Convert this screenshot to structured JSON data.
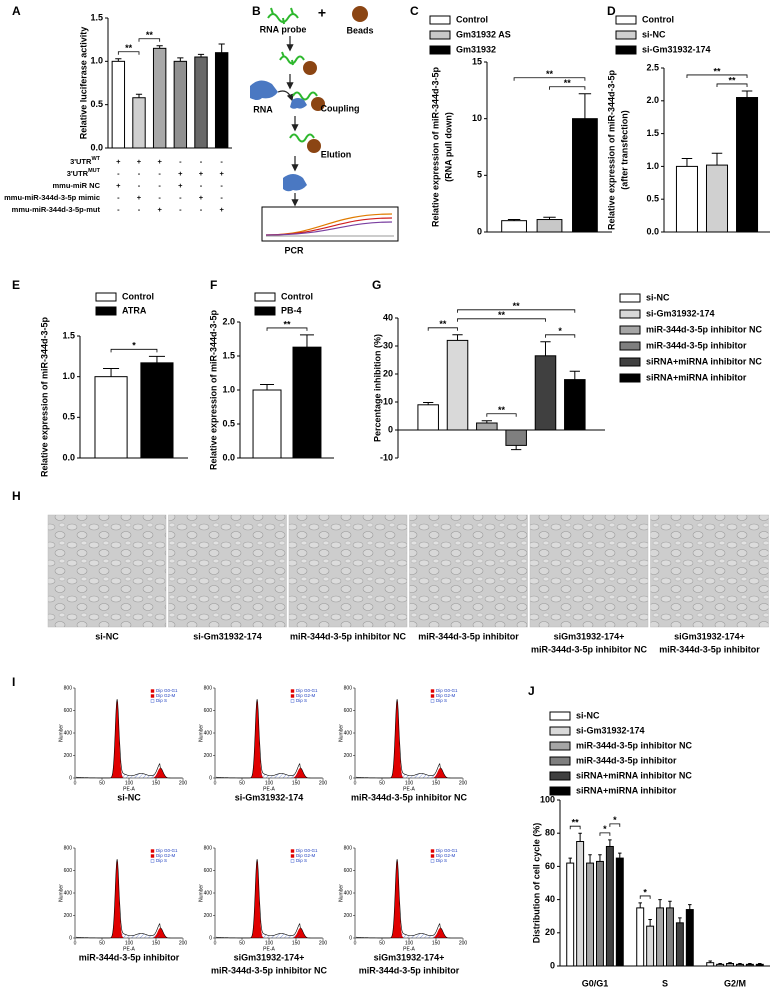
{
  "chart_data": [
    {
      "panel": "A",
      "type": "bar",
      "ylabel": [
        "Relative luciferase activity"
      ],
      "categories": [
        null,
        null,
        null,
        null,
        null,
        null
      ],
      "series": [
        {
          "colors": [
            "#ffffff",
            "#d0d0d0",
            "#a8a8a8",
            "#909090",
            "#686868",
            "#000000"
          ],
          "values": [
            1.0,
            0.58,
            1.15,
            1.0,
            1.05,
            1.1
          ],
          "errors": [
            0.03,
            0.04,
            0.03,
            0.04,
            0.03,
            0.1
          ]
        }
      ],
      "ylim": [
        0,
        1.5
      ],
      "yticks": [
        {
          "value": 0,
          "label": "0.0"
        },
        0.5,
        {
          "value": 1,
          "label": "1.0"
        },
        1.5
      ],
      "annotations": [
        {
          "text": "**",
          "from": [
            0,
            0
          ],
          "to": [
            1,
            0
          ]
        },
        {
          "text": "**",
          "from": [
            1,
            0
          ],
          "to": [
            2,
            0
          ]
        }
      ],
      "conditions": [
        {
          "label": "3'UTR",
          "sup": "WT",
          "signs": [
            "+",
            "+",
            "+",
            "-",
            "-",
            "-"
          ]
        },
        {
          "label": "3'UTR",
          "sup": "MUT",
          "signs": [
            "-",
            "-",
            "-",
            "+",
            "+",
            "+"
          ]
        },
        {
          "label": "mmu-miR NC",
          "signs": [
            "+",
            "-",
            "-",
            "+",
            "-",
            "-"
          ]
        },
        {
          "label": "mmu-miR-344d-3-5p mimic",
          "signs": [
            "-",
            "+",
            "-",
            "-",
            "+",
            "-"
          ]
        },
        {
          "label": "mmu-miR-344d-3-5p-mut",
          "signs": [
            "-",
            "-",
            "+",
            "-",
            "-",
            "+"
          ]
        }
      ]
    },
    {
      "panel": "C",
      "type": "bar",
      "ylabel": [
        "Relative expression of miR-344d-3-5p",
        "(RNA pull down)"
      ],
      "categories": [
        null
      ],
      "series": [
        {
          "name": "Control",
          "color": "#ffffff",
          "values": [
            1.0
          ],
          "errors": [
            0.1
          ]
        },
        {
          "name": "Gm31932 AS",
          "color": "#c8c8c8",
          "values": [
            1.1
          ],
          "errors": [
            0.2
          ]
        },
        {
          "name": "Gm31932",
          "color": "#000000",
          "values": [
            10.0
          ],
          "errors": [
            2.2
          ]
        }
      ],
      "ylim": [
        0,
        15
      ],
      "yticks": [
        0,
        5,
        10,
        15
      ],
      "annotations": [
        {
          "text": "**",
          "from": [
            0,
            0
          ],
          "to": [
            0,
            2
          ]
        },
        {
          "text": "**",
          "from": [
            0,
            1
          ],
          "to": [
            0,
            2
          ]
        }
      ]
    },
    {
      "panel": "D",
      "type": "bar",
      "ylabel": [
        "Relative expression of miR-344d-3-5p",
        "(after transfection)"
      ],
      "categories": [
        null
      ],
      "series": [
        {
          "name": "Control",
          "color": "#ffffff",
          "values": [
            1.0
          ],
          "errors": [
            0.12
          ]
        },
        {
          "name": "si-NC",
          "color": "#d0d0d0",
          "values": [
            1.02
          ],
          "errors": [
            0.18
          ]
        },
        {
          "name": "si-Gm31932-174",
          "color": "#000000",
          "values": [
            2.05
          ],
          "errors": [
            0.1
          ]
        }
      ],
      "ylim": [
        0,
        2.5
      ],
      "yticks": [
        {
          "value": 0,
          "label": "0.0"
        },
        0.5,
        {
          "value": 1,
          "label": "1.0"
        },
        1.5,
        {
          "value": 2,
          "label": "2.0"
        },
        2.5
      ],
      "annotations": [
        {
          "text": "**",
          "from": [
            0,
            0
          ],
          "to": [
            0,
            2
          ]
        },
        {
          "text": "**",
          "from": [
            0,
            1
          ],
          "to": [
            0,
            2
          ]
        }
      ]
    },
    {
      "panel": "E",
      "type": "bar",
      "ylabel": [
        "Relative expression of miR-344d-3-5p"
      ],
      "categories": [
        null
      ],
      "series": [
        {
          "name": "Control",
          "color": "#ffffff",
          "values": [
            1.0
          ],
          "errors": [
            0.1
          ]
        },
        {
          "name": "ATRA",
          "color": "#000000",
          "values": [
            1.17
          ],
          "errors": [
            0.08
          ]
        }
      ],
      "ylim": [
        0,
        1.5
      ],
      "yticks": [
        {
          "value": 0,
          "label": "0.0"
        },
        0.5,
        {
          "value": 1,
          "label": "1.0"
        },
        1.5
      ],
      "annotations": [
        {
          "text": "*",
          "from": [
            0,
            0
          ],
          "to": [
            0,
            1
          ]
        }
      ]
    },
    {
      "panel": "F",
      "type": "bar",
      "ylabel": [
        "Relative expression of miR-344d-3-5p"
      ],
      "categories": [
        null
      ],
      "series": [
        {
          "name": "Control",
          "color": "#ffffff",
          "values": [
            1.0
          ],
          "errors": [
            0.08
          ]
        },
        {
          "name": "PB-4",
          "color": "#000000",
          "values": [
            1.63
          ],
          "errors": [
            0.18
          ]
        }
      ],
      "ylim": [
        0,
        2
      ],
      "yticks": [
        {
          "value": 0,
          "label": "0.0"
        },
        0.5,
        {
          "value": 1,
          "label": "1.0"
        },
        1.5,
        {
          "value": 2,
          "label": "2.0"
        }
      ],
      "annotations": [
        {
          "text": "**",
          "from": [
            0,
            0
          ],
          "to": [
            0,
            1
          ]
        }
      ]
    },
    {
      "panel": "G",
      "type": "bar",
      "ylabel": [
        "Percentage inhibition (%)"
      ],
      "categories": [
        null
      ],
      "series": [
        {
          "name": "si-NC",
          "color": "#ffffff",
          "values": [
            9
          ],
          "errors": [
            0.8
          ]
        },
        {
          "name": "si-Gm31932-174",
          "color": "#d9d9d9",
          "values": [
            32
          ],
          "errors": [
            2
          ]
        },
        {
          "name": "miR-344d-3-5p inhibitor NC",
          "color": "#a6a6a6",
          "values": [
            2.5
          ],
          "errors": [
            0.8
          ]
        },
        {
          "name": "miR-344d-3-5p inhibitor",
          "color": "#7f7f7f",
          "values": [
            -5.5
          ],
          "errors": [
            1.5
          ]
        },
        {
          "name": "siRNA+miRNA inhibitor NC",
          "color": "#404040",
          "values": [
            26.5
          ],
          "errors": [
            5
          ]
        },
        {
          "name": "siRNA+miRNA inhibitor",
          "color": "#000000",
          "values": [
            18
          ],
          "errors": [
            3
          ]
        }
      ],
      "ylim": [
        -10,
        40
      ],
      "yticks": [
        -10,
        0,
        10,
        20,
        30,
        40
      ],
      "annotations": [
        {
          "text": "**",
          "from": [
            0,
            0
          ],
          "to": [
            0,
            1
          ]
        },
        {
          "text": "**",
          "from": [
            0,
            1
          ],
          "to": [
            0,
            5
          ]
        },
        {
          "text": "**",
          "from": [
            0,
            1
          ],
          "to": [
            0,
            4
          ]
        },
        {
          "text": "*",
          "from": [
            0,
            4
          ],
          "to": [
            0,
            5
          ]
        },
        {
          "text": "**",
          "from": [
            0,
            2
          ],
          "to": [
            0,
            3
          ]
        }
      ]
    },
    {
      "panel": "J",
      "type": "bar",
      "ylabel": [
        "Distribution of cell cycle (%)"
      ],
      "categories": [
        "G0/G1",
        "S",
        "G2/M"
      ],
      "series": [
        {
          "name": "si-NC",
          "color": "#ffffff",
          "values": [
            62,
            35,
            2
          ],
          "errors": [
            3,
            3,
            1
          ]
        },
        {
          "name": "si-Gm31932-174",
          "color": "#d9d9d9",
          "values": [
            75,
            24,
            1
          ],
          "errors": [
            5,
            4,
            0.5
          ]
        },
        {
          "name": "miR-344d-3-5p inhibitor NC",
          "color": "#a6a6a6",
          "values": [
            62,
            35,
            1.5
          ],
          "errors": [
            5,
            5,
            0.5
          ]
        },
        {
          "name": "miR-344d-3-5p inhibitor",
          "color": "#7f7f7f",
          "values": [
            63,
            35,
            1
          ],
          "errors": [
            4,
            4,
            0.5
          ]
        },
        {
          "name": "siRNA+miRNA inhibitor NC",
          "color": "#404040",
          "values": [
            72,
            26,
            1
          ],
          "errors": [
            4,
            3,
            0.5
          ]
        },
        {
          "name": "siRNA+miRNA inhibitor",
          "color": "#000000",
          "values": [
            65,
            34,
            1
          ],
          "errors": [
            3,
            3,
            0.5
          ]
        }
      ],
      "ylim": [
        0,
        100
      ],
      "yticks": [
        0,
        20,
        40,
        60,
        80,
        100
      ],
      "annotations": [
        {
          "text": "**",
          "from": [
            0,
            0
          ],
          "to": [
            0,
            1
          ]
        },
        {
          "text": "*",
          "from": [
            0,
            3
          ],
          "to": [
            0,
            4
          ]
        },
        {
          "text": "*",
          "from": [
            0,
            4
          ],
          "to": [
            0,
            5
          ]
        },
        {
          "text": "*",
          "from": [
            1,
            0
          ],
          "to": [
            1,
            1
          ]
        }
      ]
    }
  ],
  "diagram": {
    "panel": "B",
    "labels": {
      "rna_probe": "RNA probe",
      "plus": "+",
      "beads": "Beads",
      "rna": "RNA",
      "coupling": "Coupling",
      "elution": "Elution",
      "pcr": "PCR"
    }
  },
  "micrographs": {
    "panel": "H",
    "captions": [
      [
        "si-NC"
      ],
      [
        "si-Gm31932-174"
      ],
      [
        "miR-344d-3-5p inhibitor NC"
      ],
      [
        "miR-344d-3-5p inhibitor"
      ],
      [
        "siGm31932-174+",
        "miR-344d-3-5p inhibitor NC"
      ],
      [
        "siGm31932-174+",
        "miR-344d-3-5p inhibitor"
      ]
    ]
  },
  "flow_cytometry": {
    "panel": "I",
    "xlabel": "PE-A",
    "ylabel": "Number",
    "xlim": [
      0,
      200
    ],
    "xticks": [
      0,
      50,
      100,
      150,
      200
    ],
    "ylim": [
      0,
      800
    ],
    "yticks": [
      0,
      200,
      400,
      600,
      800
    ],
    "legend": [
      "Dip G0-G1",
      "Dip G2-M",
      "Dip S"
    ],
    "legend_colors": [
      "#e00000",
      "#e00000",
      "#3355cc"
    ],
    "captions": [
      [
        "si-NC"
      ],
      [
        "si-Gm31932-174"
      ],
      [
        "miR-344d-3-5p inhibitor NC"
      ],
      [
        "miR-344d-3-5p inhibitor"
      ],
      [
        "siGm31932-174+",
        "miR-344d-3-5p inhibitor NC"
      ],
      [
        "siGm31932-174+",
        "miR-344d-3-5p inhibitor"
      ]
    ]
  }
}
